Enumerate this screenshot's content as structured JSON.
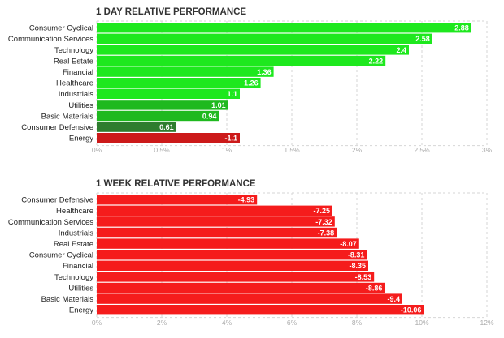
{
  "chart_data": [
    {
      "type": "bar",
      "orientation": "horizontal",
      "title": "1 DAY RELATIVE PERFORMANCE",
      "categories": [
        "Consumer Cyclical",
        "Communication Services",
        "Technology",
        "Real Estate",
        "Financial",
        "Healthcare",
        "Industrials",
        "Utilities",
        "Basic Materials",
        "Consumer Defensive",
        "Energy"
      ],
      "values": [
        2.88,
        2.58,
        2.4,
        2.22,
        1.36,
        1.26,
        1.1,
        1.01,
        0.94,
        0.61,
        -1.1
      ],
      "value_labels": [
        "2.88",
        "2.58",
        "2.4",
        "2.22",
        "1.36",
        "1.26",
        "1.1",
        "1.01",
        "0.94",
        "0.61",
        "-1.1"
      ],
      "colors": [
        "#1ee81e",
        "#1ee81e",
        "#1ee81e",
        "#1ee81e",
        "#1ee81e",
        "#1ee81e",
        "#1ee81e",
        "#1fb91f",
        "#1fb91f",
        "#2e7d2e",
        "#cc1a1a"
      ],
      "xlim": [
        0,
        3
      ],
      "xticks": [
        "0%",
        "0.5%",
        "1%",
        "1.5%",
        "2%",
        "2.5%",
        "3%"
      ],
      "tick_values": [
        0,
        0.5,
        1,
        1.5,
        2,
        2.5,
        3
      ],
      "grid": true
    },
    {
      "type": "bar",
      "orientation": "horizontal",
      "title": "1 WEEK RELATIVE PERFORMANCE",
      "categories": [
        "Consumer Defensive",
        "Healthcare",
        "Communication Services",
        "Industrials",
        "Real Estate",
        "Consumer Cyclical",
        "Financial",
        "Technology",
        "Utilities",
        "Basic Materials",
        "Energy"
      ],
      "values": [
        -4.93,
        -7.25,
        -7.32,
        -7.38,
        -8.07,
        -8.31,
        -8.35,
        -8.53,
        -8.86,
        -9.4,
        -10.06
      ],
      "value_labels": [
        "-4.93",
        "-7.25",
        "-7.32",
        "-7.38",
        "-8.07",
        "-8.31",
        "-8.35",
        "-8.53",
        "-8.86",
        "-9.4",
        "-10.06"
      ],
      "colors": [
        "#f51c1c",
        "#f51c1c",
        "#f51c1c",
        "#f51c1c",
        "#f51c1c",
        "#f51c1c",
        "#f51c1c",
        "#f51c1c",
        "#f51c1c",
        "#f51c1c",
        "#f51c1c"
      ],
      "xlim": [
        0,
        12
      ],
      "xticks": [
        "0%",
        "2%",
        "4%",
        "6%",
        "8%",
        "10%",
        "12%"
      ],
      "tick_values": [
        0,
        2,
        4,
        6,
        8,
        10,
        12
      ],
      "grid": true
    }
  ]
}
